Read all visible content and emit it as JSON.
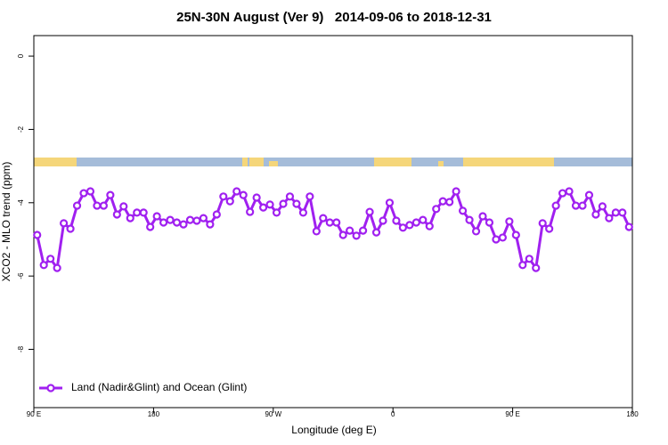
{
  "chart_data": {
    "type": "line",
    "title": "25N-30N August (Ver 9)   2014-09-06 to 2018-12-31",
    "xlabel": "Longitude (deg E)",
    "ylabel": "XCO2 - MLO trend (ppm)",
    "xlim": [
      90,
      540
    ],
    "ylim": [
      -9.59,
      0.56
    ],
    "xticks": [
      {
        "value": 90,
        "label": "90 E"
      },
      180,
      {
        "value": 270,
        "label": "90 W"
      },
      {
        "value": 360,
        "label": "0"
      },
      {
        "value": 450,
        "label": "90 E"
      },
      {
        "value": 540,
        "label": "180"
      }
    ],
    "yticks": [
      0,
      -2,
      -4,
      -6,
      -8
    ],
    "legend": "bottomleft",
    "x": [
      92.5,
      97.5,
      102.5,
      107.5,
      112.5,
      117.5,
      122.5,
      127.5,
      132.5,
      137.5,
      142.5,
      147.5,
      152.5,
      157.5,
      162.5,
      167.5,
      172.5,
      177.5,
      182.5,
      187.5,
      192.5,
      197.5,
      202.5,
      207.5,
      212.5,
      217.5,
      222.5,
      227.5,
      232.5,
      237.5,
      242.5,
      247.5,
      252.5,
      257.5,
      262.5,
      267.5,
      272.5,
      277.5,
      282.5,
      287.5,
      292.5,
      297.5,
      302.5,
      307.5,
      312.5,
      317.5,
      322.5,
      327.5,
      332.5,
      337.5,
      342.5,
      347.5,
      352.5,
      357.5,
      362.5,
      367.5,
      372.5,
      377.5,
      382.5,
      387.5,
      392.5,
      397.5,
      402.5,
      407.5,
      412.5,
      417.5,
      422.5,
      427.5,
      432.5,
      437.5,
      442.5,
      447.5,
      452.5,
      457.5,
      462.5,
      467.5,
      472.5,
      477.5,
      482.5,
      487.5,
      492.5,
      497.5,
      502.5,
      507.5,
      512.5,
      517.5,
      522.5,
      527.5,
      532.5,
      537.5
    ],
    "series": [
      {
        "name": "Land (Nadir&Glint) and Ocean (Glint)",
        "color": "#a020f0",
        "values": [
          -4.88,
          -5.7,
          -5.53,
          -5.78,
          -4.56,
          -4.71,
          -4.08,
          -3.74,
          -3.69,
          -4.08,
          -4.08,
          -3.79,
          -4.32,
          -4.1,
          -4.42,
          -4.27,
          -4.27,
          -4.66,
          -4.37,
          -4.54,
          -4.47,
          -4.54,
          -4.59,
          -4.47,
          -4.49,
          -4.42,
          -4.59,
          -4.32,
          -3.83,
          -3.96,
          -3.69,
          -3.79,
          -4.25,
          -3.86,
          -4.13,
          -4.05,
          -4.27,
          -4.03,
          -3.83,
          -4.03,
          -4.27,
          -3.83,
          -4.78,
          -4.42,
          -4.54,
          -4.54,
          -4.88,
          -4.76,
          -4.9,
          -4.76,
          -4.25,
          -4.81,
          -4.49,
          -4.0,
          -4.49,
          -4.68,
          -4.61,
          -4.54,
          -4.47,
          -4.64,
          -4.17,
          -3.96,
          -3.98,
          -3.69,
          -4.22,
          -4.47,
          -4.78,
          -4.37,
          -4.54,
          -5.0,
          -4.95,
          -4.51,
          -4.88,
          -5.7,
          -5.53,
          -5.78,
          -4.56,
          -4.71,
          -4.08,
          -3.74,
          -3.69,
          -4.08,
          -4.08,
          -3.79,
          -4.32,
          -4.1,
          -4.42,
          -4.27,
          -4.27,
          -4.66
        ]
      }
    ]
  }
}
